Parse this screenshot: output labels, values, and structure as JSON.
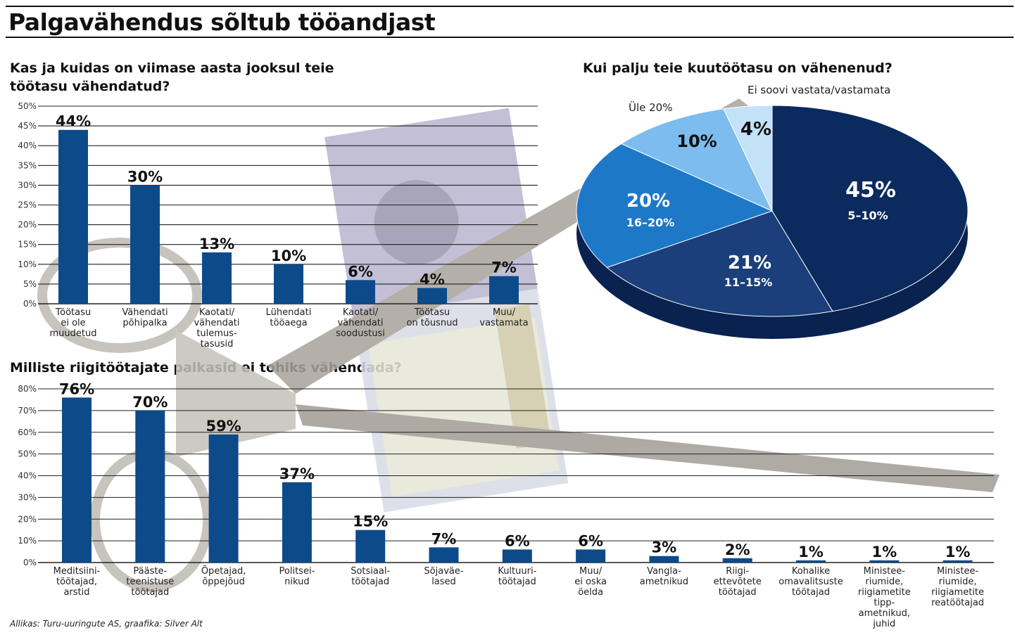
{
  "title": "Palgavähendus sõltub tööandjast",
  "source": "Allikas: Turu-uuringute AS, graafika: Silver Alt",
  "colors": {
    "bar": "#0d4a8a",
    "pie_45": "#0b2a5e",
    "pie_21": "#1a3f7a",
    "pie_20": "#1e78c8",
    "pie_10": "#7cbcee",
    "pie_4": "#c3e2f8"
  },
  "chart_data": [
    {
      "type": "bar",
      "title": "Kas ja kuidas on viimase aasta jooksul teie töötasu vähendatud?",
      "title_lines": [
        "Kas ja kuidas on viimase aasta jooksul teie",
        "töötasu vähendatud?"
      ],
      "ylim": [
        0,
        50
      ],
      "yticks": [
        "0%",
        "5%",
        "10%",
        "15%",
        "20%",
        "25%",
        "30%",
        "35%",
        "40%",
        "45%",
        "50%"
      ],
      "grid": true,
      "categories": [
        [
          "Töötasu",
          "ei ole",
          "muudetud"
        ],
        [
          "Vähendati",
          "põhipalka"
        ],
        [
          "Kaotati/",
          "vähendati",
          "tulemus-",
          "tasusid"
        ],
        [
          "Lühendati",
          "tööaega"
        ],
        [
          "Kaotati/",
          "vähendati",
          "soodustusi"
        ],
        [
          "Töötasu",
          "on tõusnud"
        ],
        [
          "Muu/",
          "vastamata"
        ]
      ],
      "values": [
        44,
        30,
        13,
        10,
        6,
        4,
        7
      ],
      "value_labels": [
        "44%",
        "30%",
        "13%",
        "10%",
        "6%",
        "4%",
        "7%"
      ]
    },
    {
      "type": "pie",
      "title": "Kui palju teie kuutöötasu on vähenenud?",
      "slices": [
        {
          "value": 45,
          "label": "45%",
          "sublabel": "5–10%"
        },
        {
          "value": 21,
          "label": "21%",
          "sublabel": "11–15%"
        },
        {
          "value": 20,
          "label": "20%",
          "sublabel": "16–20%"
        },
        {
          "value": 10,
          "label": "10%",
          "sublabel": "Üle 20%"
        },
        {
          "value": 4,
          "label": "4%",
          "sublabel": "Ei soovi vastata/vastamata"
        }
      ]
    },
    {
      "type": "bar",
      "title": "Milliste riigitöötajate palkasid ei tohiks vähendada?",
      "ylim": [
        0,
        80
      ],
      "yticks": [
        "0%",
        "10%",
        "20%",
        "30%",
        "40%",
        "50%",
        "60%",
        "70%",
        "80%"
      ],
      "grid": true,
      "categories": [
        [
          "Meditsiini-",
          "töötajad,",
          "arstid"
        ],
        [
          "Pääste-",
          "teenistuse",
          "töötajad"
        ],
        [
          "Õpetajad,",
          "õppejõud"
        ],
        [
          "Politsei-",
          "nikud"
        ],
        [
          "Sotsiaal-",
          "töötajad"
        ],
        [
          "Sõjaväe-",
          "lased"
        ],
        [
          "Kultuuri-",
          "töötajad"
        ],
        [
          "Muu/",
          "ei oska",
          "öelda"
        ],
        [
          "Vangla-",
          "ametnikud"
        ],
        [
          "Riigi-",
          "ettevõtete",
          "töötajad"
        ],
        [
          "Kohalike",
          "omavalitsuste",
          "töötajad"
        ],
        [
          "Ministee-",
          "riumide,",
          "riigiametite",
          "tipp-",
          "ametnikud,",
          "juhid"
        ],
        [
          "Ministee-",
          "riumide,",
          "riigiametite",
          "reatöötajad"
        ]
      ],
      "values": [
        76,
        70,
        59,
        37,
        15,
        7,
        6,
        6,
        3,
        2,
        1,
        1,
        1
      ],
      "value_labels": [
        "76%",
        "70%",
        "59%",
        "37%",
        "15%",
        "7%",
        "6%",
        "6%",
        "3%",
        "2%",
        "1%",
        "1%",
        "1%"
      ]
    }
  ]
}
